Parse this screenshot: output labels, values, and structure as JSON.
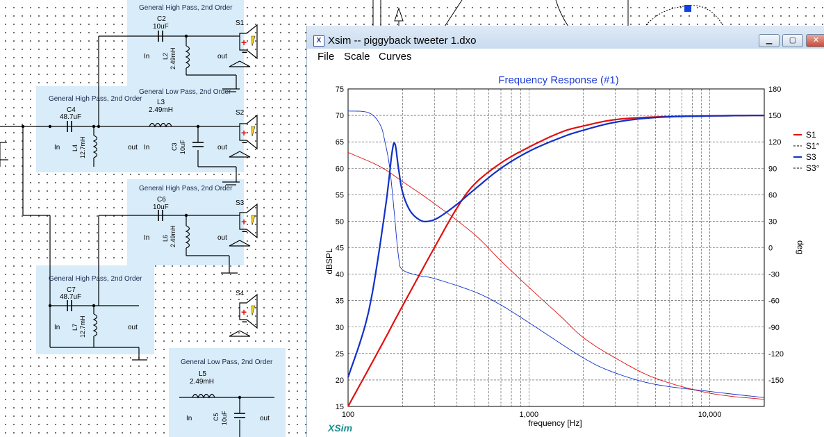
{
  "schematic": {
    "blocks": [
      {
        "title": "General High Pass, 2nd Order",
        "cap": "C2",
        "cap_value": "10uF",
        "ind": "L2",
        "ind_value": "2.49mH",
        "in_label": "In",
        "out_label": "out"
      },
      {
        "title": "General High Pass, 2nd Order",
        "cap": "C4",
        "cap_value": "48.7uF",
        "ind": "L4",
        "ind_value": "12.7mH",
        "in_label": "In",
        "out_label": "out"
      },
      {
        "title": "General Low Pass, 2nd Order",
        "ind": "L3",
        "ind_value": "2.49mH",
        "cap": "C3",
        "cap_value": "10uF",
        "in_label": "In",
        "out_label": "out"
      },
      {
        "title": "General High Pass, 2nd Order",
        "cap": "C6",
        "cap_value": "10uF",
        "ind": "L6",
        "ind_value": "2.49mH",
        "in_label": "In",
        "out_label": "out"
      },
      {
        "title": "General High Pass, 2nd Order",
        "cap": "C7",
        "cap_value": "48.7uF",
        "ind": "L7",
        "ind_value": "12.7mH",
        "in_label": "In",
        "out_label": "out"
      },
      {
        "title": "General Low Pass, 2nd Order",
        "ind": "L5",
        "ind_value": "2.49mH",
        "cap": "C5",
        "cap_value": "10uF",
        "in_label": "In",
        "out_label": "out"
      }
    ],
    "speakers": [
      "S1",
      "S2",
      "S3",
      "S4"
    ]
  },
  "window": {
    "title": "Xsim -- piggyback tweeter 1.dxo",
    "app_icon": "X",
    "menu": [
      "File",
      "Scale",
      "Curves"
    ],
    "logo": "XSim"
  },
  "chart_data": {
    "type": "line",
    "title": "Frequency Response (#1)",
    "xlabel": "frequency [Hz]",
    "ylabel": "dBSPL",
    "y2label": "deg",
    "xscale": "log",
    "xlim": [
      100,
      20000
    ],
    "ylim": [
      15,
      75
    ],
    "y2lim": [
      -180,
      180
    ],
    "x_ticks": [
      "100",
      "1,000",
      "10,000"
    ],
    "y_ticks": [
      15,
      20,
      25,
      30,
      35,
      40,
      45,
      50,
      55,
      60,
      65,
      70,
      75
    ],
    "y2_ticks": [
      -150,
      -120,
      -90,
      -60,
      -30,
      0,
      30,
      60,
      90,
      120,
      150,
      180
    ],
    "grid": true,
    "legend_position": "right",
    "series": [
      {
        "name": "S1",
        "axis": "left",
        "style": "solid",
        "color": "#e01010",
        "x": [
          100,
          150,
          200,
          300,
          400,
          500,
          700,
          1000,
          1500,
          2000,
          3000,
          5000,
          10000,
          20000
        ],
        "y": [
          15,
          26,
          34,
          45,
          52.5,
          57,
          61,
          64,
          66.8,
          68,
          69.2,
          69.7,
          69.9,
          70
        ]
      },
      {
        "name": "S1°",
        "axis": "right",
        "style": "dashed",
        "color": "#e01010",
        "x": [
          100,
          150,
          200,
          300,
          500,
          700,
          1000,
          1500,
          2000,
          3000,
          5000,
          10000,
          20000
        ],
        "y": [
          108,
          92,
          75,
          50,
          15,
          -15,
          -45,
          -78,
          -102,
          -125,
          -148,
          -165,
          -172
        ]
      },
      {
        "name": "S3",
        "axis": "left",
        "style": "solid",
        "color": "#1030c8",
        "x": [
          100,
          130,
          160,
          175,
          182,
          190,
          200,
          220,
          250,
          280,
          320,
          400,
          500,
          700,
          1000,
          1500,
          2000,
          3000,
          5000,
          10000,
          20000
        ],
        "y": [
          20.5,
          33,
          52,
          63,
          64.5,
          60,
          55.5,
          52,
          50.2,
          50,
          50.8,
          53.2,
          56,
          60,
          63.2,
          65.8,
          67.2,
          68.7,
          69.6,
          69.9,
          70
        ]
      },
      {
        "name": "S3°",
        "axis": "right",
        "style": "dashed",
        "color": "#1030c8",
        "x": [
          100,
          130,
          150,
          160,
          170,
          180,
          190,
          200,
          250,
          300,
          500,
          700,
          1000,
          2000,
          3000,
          5000,
          10000,
          20000
        ],
        "y": [
          155,
          153,
          140,
          120,
          90,
          40,
          -10,
          -25,
          -32,
          -35,
          -50,
          -65,
          -85,
          -125,
          -142,
          -155,
          -163,
          -170
        ]
      }
    ]
  }
}
